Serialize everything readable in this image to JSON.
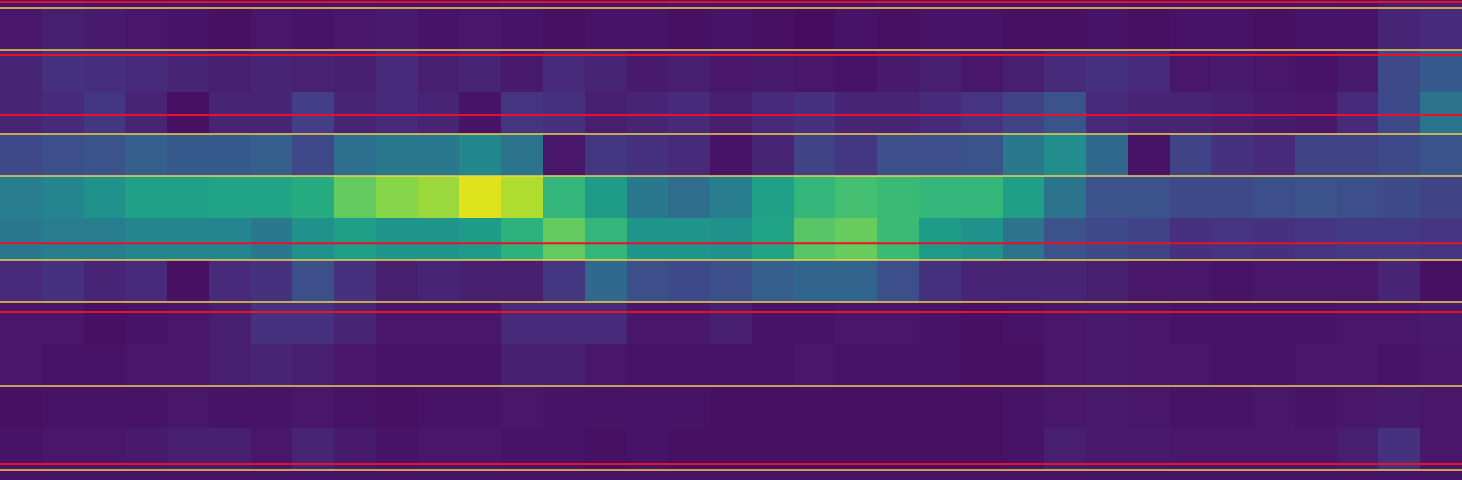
{
  "chart_data": {
    "type": "heatmap",
    "color": "Viridis",
    "tick_labels": false,
    "xlim": [
      -0.5,
      34.5
    ],
    "ylim": [
      11.74,
      0.31
    ],
    "zlim": [
      0,
      1
    ],
    "cells": [
      [
        0.05,
        0.06,
        0.05,
        0.05,
        0.06,
        0.05,
        0.05,
        0.05,
        0.06,
        0.05,
        0.05,
        0.05,
        0.06,
        0.05,
        0.05,
        0.05,
        0.06,
        0.05,
        0.05,
        0.05,
        0.05,
        0.06,
        0.05,
        0.05,
        0.05,
        0.05,
        0.06,
        0.05,
        0.05,
        0.05,
        0.05,
        0.06,
        0.05,
        0.08,
        0.08
      ],
      [
        0.06,
        0.08,
        0.07,
        0.06,
        0.05,
        0.04,
        0.06,
        0.05,
        0.06,
        0.07,
        0.05,
        0.06,
        0.05,
        0.04,
        0.05,
        0.05,
        0.04,
        0.05,
        0.04,
        0.03,
        0.05,
        0.04,
        0.05,
        0.05,
        0.04,
        0.04,
        0.05,
        0.04,
        0.05,
        0.05,
        0.04,
        0.05,
        0.05,
        0.1,
        0.12
      ],
      [
        0.1,
        0.14,
        0.13,
        0.12,
        0.1,
        0.08,
        0.1,
        0.09,
        0.08,
        0.12,
        0.08,
        0.1,
        0.07,
        0.12,
        0.1,
        0.07,
        0.08,
        0.06,
        0.07,
        0.06,
        0.05,
        0.07,
        0.08,
        0.06,
        0.08,
        0.12,
        0.14,
        0.12,
        0.06,
        0.07,
        0.06,
        0.05,
        0.07,
        0.22,
        0.28
      ],
      [
        0.1,
        0.12,
        0.16,
        0.1,
        0.04,
        0.1,
        0.1,
        0.18,
        0.1,
        0.12,
        0.1,
        0.05,
        0.15,
        0.14,
        0.08,
        0.1,
        0.12,
        0.08,
        0.12,
        0.14,
        0.1,
        0.1,
        0.12,
        0.15,
        0.2,
        0.26,
        0.12,
        0.1,
        0.1,
        0.08,
        0.07,
        0.06,
        0.12,
        0.22,
        0.38
      ],
      [
        0.22,
        0.24,
        0.26,
        0.3,
        0.28,
        0.28,
        0.3,
        0.22,
        0.36,
        0.4,
        0.4,
        0.46,
        0.38,
        0.06,
        0.16,
        0.14,
        0.12,
        0.05,
        0.1,
        0.2,
        0.16,
        0.24,
        0.24,
        0.26,
        0.4,
        0.48,
        0.34,
        0.05,
        0.2,
        0.14,
        0.12,
        0.2,
        0.2,
        0.22,
        0.26
      ],
      [
        0.42,
        0.45,
        0.5,
        0.57,
        0.57,
        0.58,
        0.58,
        0.62,
        0.76,
        0.82,
        0.85,
        0.95,
        0.88,
        0.66,
        0.55,
        0.4,
        0.35,
        0.42,
        0.57,
        0.66,
        0.7,
        0.68,
        0.66,
        0.66,
        0.56,
        0.38,
        0.25,
        0.25,
        0.22,
        0.22,
        0.24,
        0.25,
        0.24,
        0.23,
        0.2
      ],
      [
        0.4,
        0.42,
        0.42,
        0.45,
        0.45,
        0.45,
        0.4,
        0.5,
        0.56,
        0.52,
        0.52,
        0.55,
        0.64,
        0.76,
        0.66,
        0.52,
        0.52,
        0.5,
        0.58,
        0.74,
        0.77,
        0.68,
        0.55,
        0.5,
        0.38,
        0.25,
        0.22,
        0.2,
        0.14,
        0.15,
        0.14,
        0.15,
        0.17,
        0.17,
        0.15
      ],
      [
        0.12,
        0.14,
        0.1,
        0.12,
        0.04,
        0.12,
        0.14,
        0.24,
        0.14,
        0.08,
        0.1,
        0.08,
        0.08,
        0.16,
        0.34,
        0.24,
        0.22,
        0.24,
        0.3,
        0.32,
        0.32,
        0.24,
        0.14,
        0.1,
        0.1,
        0.1,
        0.08,
        0.06,
        0.06,
        0.05,
        0.06,
        0.06,
        0.06,
        0.1,
        0.04
      ],
      [
        0.06,
        0.06,
        0.04,
        0.05,
        0.06,
        0.08,
        0.14,
        0.14,
        0.1,
        0.06,
        0.06,
        0.06,
        0.12,
        0.12,
        0.12,
        0.06,
        0.06,
        0.08,
        0.05,
        0.05,
        0.06,
        0.06,
        0.05,
        0.04,
        0.05,
        0.06,
        0.07,
        0.06,
        0.05,
        0.05,
        0.05,
        0.05,
        0.06,
        0.06,
        0.07
      ],
      [
        0.06,
        0.05,
        0.05,
        0.06,
        0.06,
        0.08,
        0.1,
        0.08,
        0.06,
        0.05,
        0.05,
        0.05,
        0.08,
        0.08,
        0.06,
        0.05,
        0.05,
        0.05,
        0.05,
        0.06,
        0.05,
        0.05,
        0.05,
        0.04,
        0.04,
        0.06,
        0.07,
        0.06,
        0.06,
        0.05,
        0.05,
        0.06,
        0.06,
        0.05,
        0.06
      ],
      [
        0.04,
        0.05,
        0.05,
        0.05,
        0.06,
        0.05,
        0.05,
        0.06,
        0.05,
        0.04,
        0.05,
        0.05,
        0.06,
        0.05,
        0.05,
        0.05,
        0.05,
        0.04,
        0.04,
        0.04,
        0.04,
        0.04,
        0.04,
        0.04,
        0.05,
        0.06,
        0.07,
        0.06,
        0.05,
        0.05,
        0.06,
        0.05,
        0.06,
        0.07,
        0.06
      ],
      [
        0.05,
        0.06,
        0.06,
        0.07,
        0.08,
        0.08,
        0.06,
        0.1,
        0.07,
        0.05,
        0.06,
        0.06,
        0.05,
        0.05,
        0.04,
        0.05,
        0.04,
        0.04,
        0.04,
        0.04,
        0.04,
        0.04,
        0.04,
        0.04,
        0.05,
        0.08,
        0.07,
        0.07,
        0.06,
        0.06,
        0.06,
        0.06,
        0.08,
        0.14,
        0.06
      ],
      [
        0.05,
        0.05,
        0.05,
        0.05,
        0.05,
        0.05,
        0.05,
        0.05,
        0.05,
        0.05,
        0.05,
        0.05,
        0.05,
        0.05,
        0.05,
        0.05,
        0.05,
        0.05,
        0.05,
        0.05,
        0.05,
        0.05,
        0.05,
        0.05,
        0.05,
        0.05,
        0.05,
        0.05,
        0.05,
        0.05,
        0.05,
        0.05,
        0.05,
        0.05,
        0.05
      ]
    ],
    "hlines": [
      {
        "color": "#f2d24a",
        "y": [
          0.5,
          1.5,
          3.5,
          4.5,
          6.5,
          7.5,
          9.5,
          11.5
        ]
      },
      {
        "color": "#e8102a",
        "y": [
          0.36,
          1.62,
          3.05,
          6.1,
          7.74,
          11.36
        ]
      }
    ]
  }
}
